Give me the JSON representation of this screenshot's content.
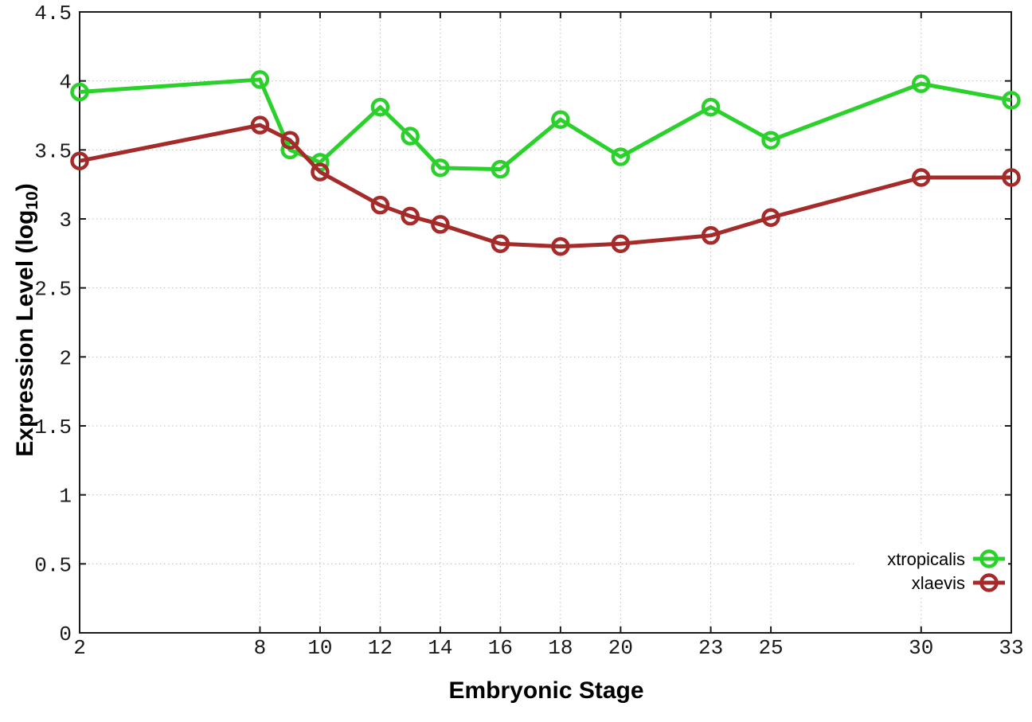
{
  "chart_data": {
    "type": "line",
    "title": "",
    "xlabel": "Embryonic Stage",
    "ylabel": "Expression Level (log10)",
    "ylabel_parts": {
      "main": "Expression Level (log",
      "sub": "10",
      "close": ")"
    },
    "x": [
      2,
      8,
      9,
      10,
      12,
      13,
      14,
      16,
      18,
      20,
      23,
      25,
      30,
      33
    ],
    "series": [
      {
        "name": "xtropicalis",
        "color": "#2bd12b",
        "values": [
          3.92,
          4.01,
          3.5,
          3.41,
          3.81,
          3.6,
          3.37,
          3.36,
          3.72,
          3.45,
          3.81,
          3.57,
          3.98,
          3.86
        ]
      },
      {
        "name": "xlaevis",
        "color": "#a52a2a",
        "values": [
          3.42,
          3.68,
          3.57,
          3.34,
          3.1,
          3.02,
          2.96,
          2.82,
          2.8,
          2.82,
          2.88,
          3.01,
          3.3,
          3.3
        ]
      }
    ],
    "xlim": [
      2,
      33
    ],
    "ylim": [
      0,
      4.5
    ],
    "xticks": {
      "values": [
        2,
        8,
        10,
        12,
        14,
        16,
        18,
        20,
        23,
        25,
        30,
        33
      ],
      "labels": [
        "2",
        "8",
        "10",
        "12",
        "14",
        "16",
        "18",
        "20",
        "23",
        "25",
        "30",
        "33"
      ]
    },
    "yticks": {
      "values": [
        0,
        0.5,
        1,
        1.5,
        2,
        2.5,
        3,
        3.5,
        4,
        4.5
      ],
      "labels": [
        "0",
        "0.5",
        "1",
        "1.5",
        "2",
        "2.5",
        "3",
        "3.5",
        "4",
        "4.5"
      ]
    },
    "grid": true,
    "legend_position": "bottom-right",
    "marker": "open-circle",
    "colors": {
      "grid": "#bdbdbd",
      "axis": "#1a1a1a",
      "background": "#ffffff"
    }
  }
}
